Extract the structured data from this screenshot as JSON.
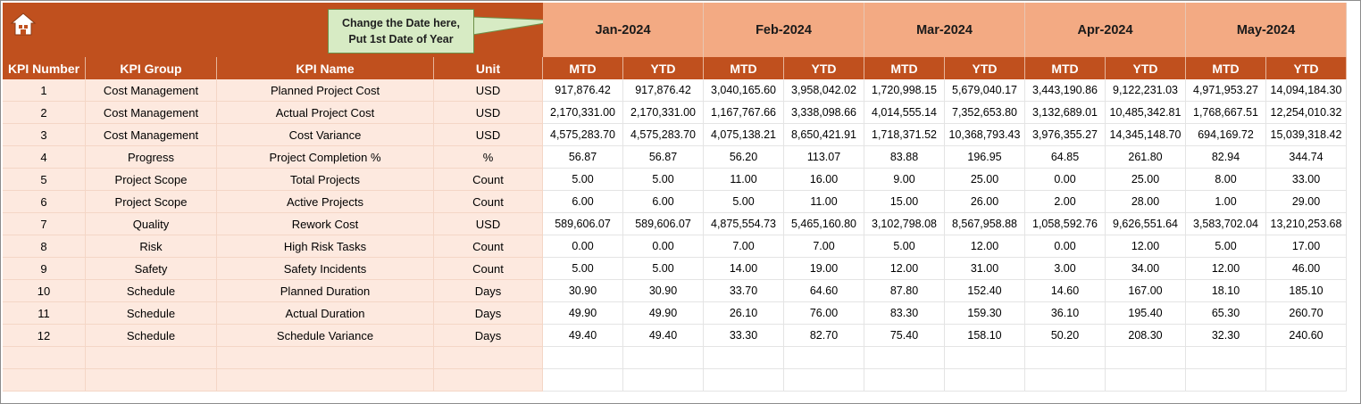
{
  "callout": {
    "line1": "Change the Date here,",
    "line2": "Put 1st Date of Year"
  },
  "months": [
    "Jan-2024",
    "Feb-2024",
    "Mar-2024",
    "Apr-2024",
    "May-2024"
  ],
  "headers": [
    "KPI Number",
    "KPI Group",
    "KPI Name",
    "Unit",
    "MTD",
    "YTD",
    "MTD",
    "YTD",
    "MTD",
    "YTD",
    "MTD",
    "YTD",
    "MTD",
    "YTD"
  ],
  "rows": [
    [
      "1",
      "Cost Management",
      "Planned Project Cost",
      "USD",
      "917,876.42",
      "917,876.42",
      "3,040,165.60",
      "3,958,042.02",
      "1,720,998.15",
      "5,679,040.17",
      "3,443,190.86",
      "9,122,231.03",
      "4,971,953.27",
      "14,094,184.30"
    ],
    [
      "2",
      "Cost Management",
      "Actual Project Cost",
      "USD",
      "2,170,331.00",
      "2,170,331.00",
      "1,167,767.66",
      "3,338,098.66",
      "4,014,555.14",
      "7,352,653.80",
      "3,132,689.01",
      "10,485,342.81",
      "1,768,667.51",
      "12,254,010.32"
    ],
    [
      "3",
      "Cost Management",
      "Cost Variance",
      "USD",
      "4,575,283.70",
      "4,575,283.70",
      "4,075,138.21",
      "8,650,421.91",
      "1,718,371.52",
      "10,368,793.43",
      "3,976,355.27",
      "14,345,148.70",
      "694,169.72",
      "15,039,318.42"
    ],
    [
      "4",
      "Progress",
      "Project Completion %",
      "%",
      "56.87",
      "56.87",
      "56.20",
      "113.07",
      "83.88",
      "196.95",
      "64.85",
      "261.80",
      "82.94",
      "344.74"
    ],
    [
      "5",
      "Project Scope",
      "Total Projects",
      "Count",
      "5.00",
      "5.00",
      "11.00",
      "16.00",
      "9.00",
      "25.00",
      "0.00",
      "25.00",
      "8.00",
      "33.00"
    ],
    [
      "6",
      "Project Scope",
      "Active Projects",
      "Count",
      "6.00",
      "6.00",
      "5.00",
      "11.00",
      "15.00",
      "26.00",
      "2.00",
      "28.00",
      "1.00",
      "29.00"
    ],
    [
      "7",
      "Quality",
      "Rework Cost",
      "USD",
      "589,606.07",
      "589,606.07",
      "4,875,554.73",
      "5,465,160.80",
      "3,102,798.08",
      "8,567,958.88",
      "1,058,592.76",
      "9,626,551.64",
      "3,583,702.04",
      "13,210,253.68"
    ],
    [
      "8",
      "Risk",
      "High Risk Tasks",
      "Count",
      "0.00",
      "0.00",
      "7.00",
      "7.00",
      "5.00",
      "12.00",
      "0.00",
      "12.00",
      "5.00",
      "17.00"
    ],
    [
      "9",
      "Safety",
      "Safety Incidents",
      "Count",
      "5.00",
      "5.00",
      "14.00",
      "19.00",
      "12.00",
      "31.00",
      "3.00",
      "34.00",
      "12.00",
      "46.00"
    ],
    [
      "10",
      "Schedule",
      "Planned Duration",
      "Days",
      "30.90",
      "30.90",
      "33.70",
      "64.60",
      "87.80",
      "152.40",
      "14.60",
      "167.00",
      "18.10",
      "185.10"
    ],
    [
      "11",
      "Schedule",
      "Actual Duration",
      "Days",
      "49.90",
      "49.90",
      "26.10",
      "76.00",
      "83.30",
      "159.30",
      "36.10",
      "195.40",
      "65.30",
      "260.70"
    ],
    [
      "12",
      "Schedule",
      "Schedule Variance",
      "Days",
      "49.40",
      "49.40",
      "33.30",
      "82.70",
      "75.40",
      "158.10",
      "50.20",
      "208.30",
      "32.30",
      "240.60"
    ],
    [
      "",
      "",
      "",
      "",
      "",
      "",
      "",
      "",
      "",
      "",
      "",
      "",
      "",
      ""
    ],
    [
      "",
      "",
      "",
      "",
      "",
      "",
      "",
      "",
      "",
      "",
      "",
      "",
      "",
      ""
    ]
  ],
  "colors": {
    "header": "#c0501e",
    "month": "#f3aa83",
    "left_fill": "#fde9df",
    "callout": "#d7ebc4"
  }
}
